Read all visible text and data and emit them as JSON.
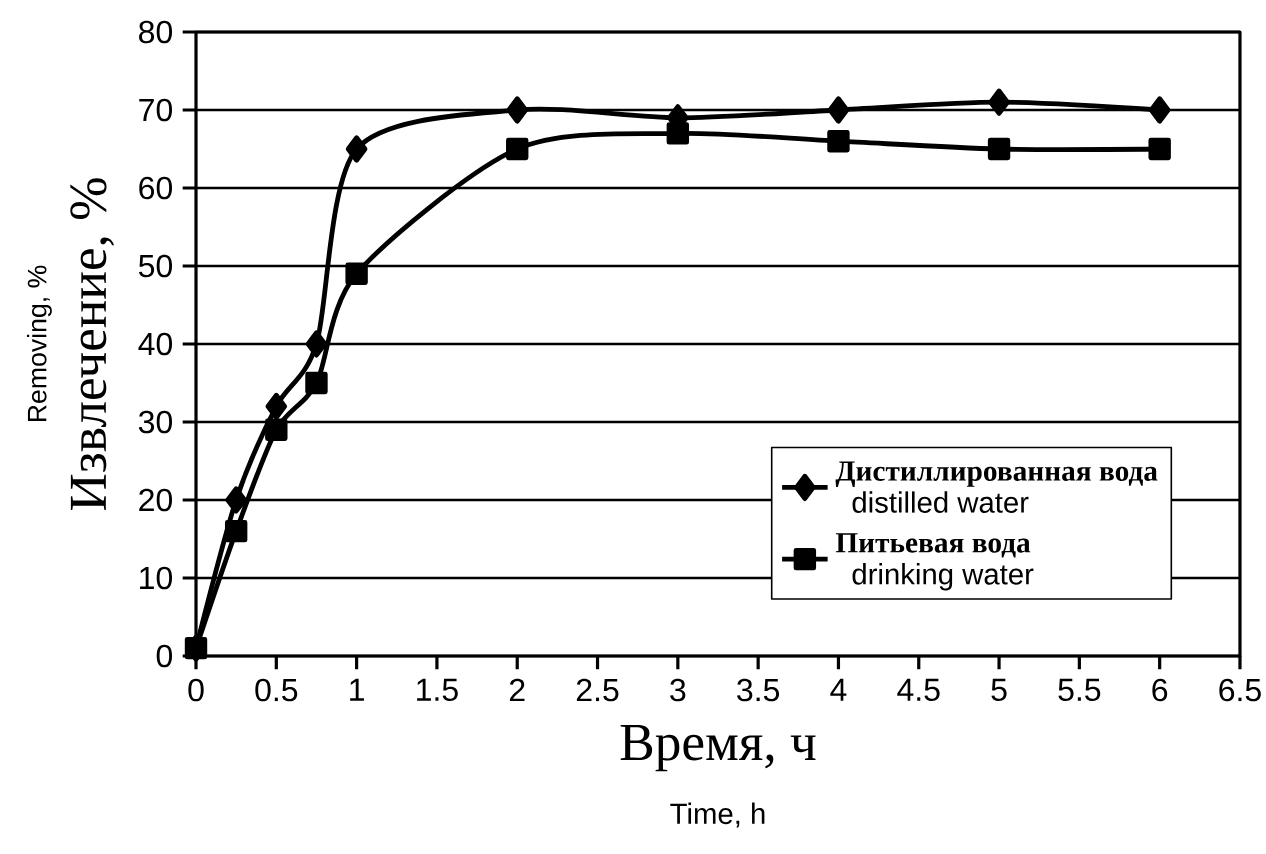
{
  "chart_data": {
    "type": "line",
    "xlabel": "Время, ч",
    "ylabel": "Извлечение, %",
    "x": [
      0,
      0.25,
      0.5,
      0.75,
      1,
      2,
      3,
      4,
      5,
      6
    ],
    "series": [
      {
        "name": "Дистиллированная вода",
        "color": "#000000",
        "marker": "diamond",
        "values": [
          1,
          20,
          32,
          40,
          65,
          70,
          69,
          70,
          71,
          70
        ]
      },
      {
        "name": "Питьевая вода",
        "color": "#000000",
        "marker": "square",
        "values": [
          1,
          16,
          29,
          35,
          49,
          65,
          67,
          66,
          65,
          65
        ]
      }
    ],
    "annotations": [
      "Removing, %",
      "Time, h",
      "distilled water",
      "drinking water"
    ],
    "xlim": [
      0,
      6.5
    ],
    "xticks": [
      0,
      0.5,
      1,
      1.5,
      2,
      2.5,
      3,
      3.5,
      4,
      4.5,
      5,
      5.5,
      6,
      6.5
    ],
    "ylim": [
      0,
      80
    ],
    "yticks": [
      0,
      10,
      20,
      30,
      40,
      50,
      60,
      70,
      80
    ],
    "grid": "y",
    "legend": "bottom right",
    "line_style": "solid"
  }
}
